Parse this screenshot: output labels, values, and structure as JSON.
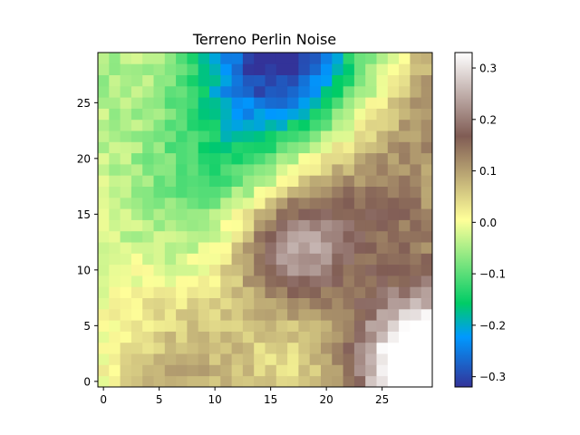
{
  "chart_data": {
    "type": "heatmap",
    "title": "Terreno Perlin Noise",
    "xlabel": "",
    "ylabel": "",
    "colormap": "terrain",
    "grid": false,
    "origin": "lower",
    "shape": [
      30,
      30
    ],
    "xlim": [
      -0.5,
      29.5
    ],
    "ylim": [
      -0.5,
      29.5
    ],
    "x_ticks": [
      "0",
      "5",
      "10",
      "15",
      "20",
      "25"
    ],
    "y_ticks": [
      "0",
      "5",
      "10",
      "15",
      "20",
      "25"
    ],
    "colorbar": {
      "vmin": -0.32,
      "vmax": 0.33,
      "ticks": [
        -0.3,
        -0.2,
        -0.1,
        0.0,
        0.1,
        0.2,
        0.3
      ],
      "tick_labels": [
        "−0.3",
        "−0.2",
        "−0.1",
        "0.0",
        "0.1",
        "0.2",
        "0.3"
      ]
    },
    "features": [
      {
        "kind": "low",
        "center": [
          15,
          29
        ],
        "radius": 5.5,
        "value": -0.32
      },
      {
        "kind": "high",
        "center": [
          28.5,
          1.5
        ],
        "radius": 4.5,
        "value": 0.33
      },
      {
        "kind": "high",
        "center": [
          17,
          12
        ],
        "radius": 3.5,
        "value": 0.18
      }
    ]
  }
}
